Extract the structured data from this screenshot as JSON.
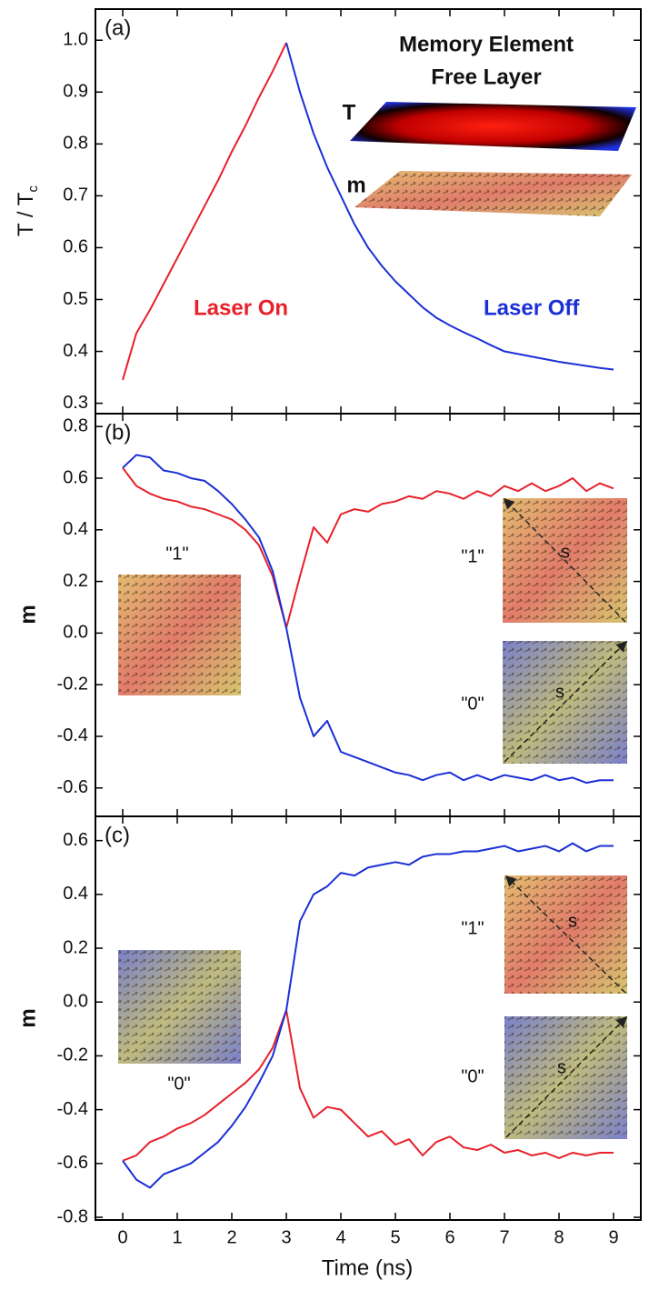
{
  "chart_data": [
    {
      "type": "line",
      "panel_label": "(a)",
      "ylabel": "T / T",
      "ylabel_subscript": "c",
      "xlim": [
        -0.5,
        9.5
      ],
      "xticks": [
        0,
        1,
        2,
        3,
        4,
        5,
        6,
        7,
        8,
        9
      ],
      "xtick_labels": false,
      "ylim": [
        0.28,
        1.06
      ],
      "yticks": [
        0.3,
        0.4,
        0.5,
        0.6,
        0.7,
        0.8,
        0.9,
        {
          "value": 1,
          "label": "1.0"
        }
      ],
      "x": [
        0,
        0.25,
        0.5,
        0.75,
        1,
        1.25,
        1.5,
        1.75,
        2,
        2.25,
        2.5,
        2.75,
        3,
        3.25,
        3.5,
        3.75,
        4,
        4.25,
        4.5,
        4.75,
        5,
        5.25,
        5.5,
        5.75,
        6,
        6.25,
        6.5,
        6.75,
        7,
        7.25,
        7.5,
        7.75,
        8,
        8.25,
        8.5,
        8.75,
        9
      ],
      "series": [
        {
          "color": "#e8202a",
          "values": [
            0.345,
            0.435,
            0.48,
            0.53,
            0.58,
            0.63,
            0.68,
            0.73,
            0.785,
            0.835,
            0.89,
            0.94,
            0.995,
            null,
            null,
            null,
            null,
            null,
            null,
            null,
            null,
            null,
            null,
            null,
            null,
            null,
            null,
            null,
            null,
            null,
            null,
            null,
            null,
            null,
            null,
            null,
            null
          ]
        },
        {
          "color": "#1a2fd6",
          "values": [
            null,
            null,
            null,
            null,
            null,
            null,
            null,
            null,
            null,
            null,
            null,
            null,
            0.995,
            0.9,
            0.82,
            0.755,
            0.7,
            0.645,
            0.6,
            0.565,
            0.535,
            0.51,
            0.485,
            0.465,
            0.45,
            0.437,
            0.425,
            0.412,
            0.4,
            0.395,
            0.39,
            0.385,
            0.38,
            0.376,
            0.372,
            0.368,
            0.365
          ]
        }
      ],
      "annotations": [
        "Memory Element",
        "Free Layer",
        "T",
        "m",
        "Laser On",
        "Laser Off"
      ]
    },
    {
      "type": "line",
      "panel_label": "(b)",
      "ylabel": "m",
      "xlim": [
        -0.5,
        9.5
      ],
      "xticks": [
        0,
        1,
        2,
        3,
        4,
        5,
        6,
        7,
        8,
        9
      ],
      "xtick_labels": false,
      "ylim": [
        -0.71,
        0.85
      ],
      "yticks": [
        -0.6,
        -0.4,
        -0.2,
        {
          "value": 0,
          "label": "0.0"
        },
        0.2,
        0.4,
        0.6,
        0.8
      ],
      "x": [
        0,
        0.25,
        0.5,
        0.75,
        1,
        1.25,
        1.5,
        1.75,
        2,
        2.25,
        2.5,
        2.75,
        3,
        3.25,
        3.5,
        3.75,
        4,
        4.25,
        4.5,
        4.75,
        5,
        5.25,
        5.5,
        5.75,
        6,
        6.25,
        6.5,
        6.75,
        7,
        7.25,
        7.5,
        7.75,
        8,
        8.25,
        8.5,
        8.75,
        9
      ],
      "series": [
        {
          "color": "#e8202a",
          "values": [
            0.64,
            0.57,
            0.54,
            0.52,
            0.51,
            0.49,
            0.48,
            0.46,
            0.44,
            0.4,
            0.34,
            0.22,
            0.02,
            0.22,
            0.41,
            0.35,
            0.46,
            0.48,
            0.47,
            0.5,
            0.51,
            0.53,
            0.52,
            0.55,
            0.54,
            0.52,
            0.55,
            0.53,
            0.57,
            0.55,
            0.58,
            0.55,
            0.57,
            0.6,
            0.55,
            0.58,
            0.56
          ]
        },
        {
          "color": "#1a2fd6",
          "values": [
            0.64,
            0.69,
            0.68,
            0.63,
            0.62,
            0.6,
            0.59,
            0.55,
            0.5,
            0.44,
            0.37,
            0.24,
            0.02,
            -0.25,
            -0.4,
            -0.34,
            -0.46,
            -0.48,
            -0.5,
            -0.52,
            -0.54,
            -0.55,
            -0.57,
            -0.55,
            -0.54,
            -0.57,
            -0.55,
            -0.57,
            -0.55,
            -0.56,
            -0.57,
            -0.55,
            -0.57,
            -0.56,
            -0.58,
            -0.57,
            -0.57
          ]
        }
      ],
      "annotations": [
        "\"1\"",
        "\"1\"",
        "s",
        "\"0\"",
        "s"
      ]
    },
    {
      "type": "line",
      "panel_label": "(c)",
      "ylabel": "m",
      "xlabel": "Time (ns)",
      "xlim": [
        -0.5,
        9.5
      ],
      "xticks": [
        0,
        1,
        2,
        3,
        4,
        5,
        6,
        7,
        8,
        9
      ],
      "xtick_labels": true,
      "ylim": [
        -0.81,
        0.69
      ],
      "yticks": [
        -0.8,
        -0.6,
        -0.4,
        -0.2,
        {
          "value": 0,
          "label": "0.0"
        },
        0.2,
        0.4,
        0.6
      ],
      "x": [
        0,
        0.25,
        0.5,
        0.75,
        1,
        1.25,
        1.5,
        1.75,
        2,
        2.25,
        2.5,
        2.75,
        3,
        3.25,
        3.5,
        3.75,
        4,
        4.25,
        4.5,
        4.75,
        5,
        5.25,
        5.5,
        5.75,
        6,
        6.25,
        6.5,
        6.75,
        7,
        7.25,
        7.5,
        7.75,
        8,
        8.25,
        8.5,
        8.75,
        9
      ],
      "series": [
        {
          "color": "#e8202a",
          "values": [
            -0.59,
            -0.57,
            -0.52,
            -0.5,
            -0.47,
            -0.45,
            -0.42,
            -0.38,
            -0.34,
            -0.3,
            -0.25,
            -0.17,
            -0.03,
            -0.32,
            -0.43,
            -0.39,
            -0.4,
            -0.45,
            -0.5,
            -0.48,
            -0.53,
            -0.51,
            -0.57,
            -0.52,
            -0.5,
            -0.54,
            -0.55,
            -0.53,
            -0.56,
            -0.55,
            -0.57,
            -0.56,
            -0.58,
            -0.56,
            -0.57,
            -0.56,
            -0.56
          ]
        },
        {
          "color": "#1a2fd6",
          "values": [
            -0.59,
            -0.66,
            -0.69,
            -0.64,
            -0.62,
            -0.6,
            -0.56,
            -0.52,
            -0.46,
            -0.39,
            -0.3,
            -0.2,
            -0.03,
            0.3,
            0.4,
            0.43,
            0.48,
            0.47,
            0.5,
            0.51,
            0.52,
            0.51,
            0.54,
            0.55,
            0.55,
            0.56,
            0.56,
            0.57,
            0.58,
            0.56,
            0.57,
            0.58,
            0.56,
            0.59,
            0.56,
            0.58,
            0.58
          ]
        }
      ],
      "annotations": [
        "\"1\"",
        "s",
        "\"0\"",
        "s",
        "\"0\""
      ]
    }
  ]
}
